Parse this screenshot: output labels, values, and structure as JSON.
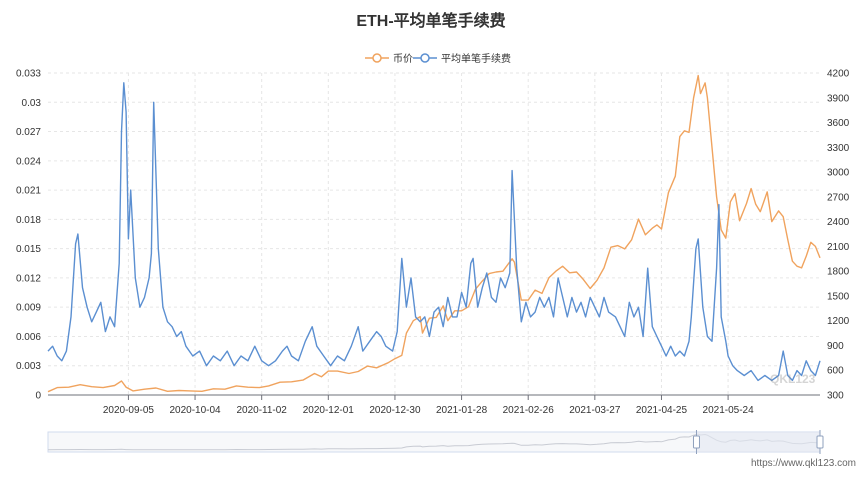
{
  "chart_data": {
    "type": "line",
    "title": "ETH-平均单笔手续费",
    "legend": [
      "币价",
      "平均单笔手续费"
    ],
    "legend_position": "top-center",
    "grid": true,
    "x_ticks": [
      "2020-09-05",
      "2020-10-04",
      "2020-11-02",
      "2020-12-01",
      "2020-12-30",
      "2021-01-28",
      "2021-02-26",
      "2021-03-27",
      "2021-04-25",
      "2021-05-24"
    ],
    "x_range": [
      "2020-08-01",
      "2021-07-03"
    ],
    "y_left": {
      "min": 0,
      "max": 0.033,
      "ticks": [
        "0",
        "0.003",
        "0.006",
        "0.009",
        "0.012",
        "0.015",
        "0.018",
        "0.021",
        "0.024",
        "0.027",
        "0.03",
        "0.033"
      ]
    },
    "y_right": {
      "min": 300,
      "max": 4200,
      "ticks": [
        "300",
        "600",
        "900",
        "1200",
        "1500",
        "1800",
        "2100",
        "2400",
        "2700",
        "3000",
        "3300",
        "3600",
        "3900",
        "4200"
      ]
    },
    "series": [
      {
        "name": "币价",
        "color": "#f0a35e",
        "axis": "right",
        "points": [
          [
            "2020-08-01",
            340
          ],
          [
            "2020-08-05",
            390
          ],
          [
            "2020-08-10",
            395
          ],
          [
            "2020-08-15",
            425
          ],
          [
            "2020-08-20",
            400
          ],
          [
            "2020-08-25",
            390
          ],
          [
            "2020-08-30",
            415
          ],
          [
            "2020-09-02",
            470
          ],
          [
            "2020-09-04",
            395
          ],
          [
            "2020-09-07",
            350
          ],
          [
            "2020-09-12",
            370
          ],
          [
            "2020-09-17",
            385
          ],
          [
            "2020-09-22",
            345
          ],
          [
            "2020-09-27",
            355
          ],
          [
            "2020-10-02",
            350
          ],
          [
            "2020-10-07",
            345
          ],
          [
            "2020-10-12",
            375
          ],
          [
            "2020-10-17",
            370
          ],
          [
            "2020-10-22",
            410
          ],
          [
            "2020-10-27",
            395
          ],
          [
            "2020-11-01",
            390
          ],
          [
            "2020-11-05",
            410
          ],
          [
            "2020-11-10",
            455
          ],
          [
            "2020-11-15",
            460
          ],
          [
            "2020-11-20",
            480
          ],
          [
            "2020-11-25",
            560
          ],
          [
            "2020-11-28",
            520
          ],
          [
            "2020-12-01",
            590
          ],
          [
            "2020-12-05",
            590
          ],
          [
            "2020-12-10",
            560
          ],
          [
            "2020-12-14",
            585
          ],
          [
            "2020-12-18",
            650
          ],
          [
            "2020-12-22",
            630
          ],
          [
            "2020-12-27",
            690
          ],
          [
            "2020-12-30",
            740
          ],
          [
            "2021-01-02",
            780
          ],
          [
            "2021-01-04",
            1050
          ],
          [
            "2021-01-07",
            1200
          ],
          [
            "2021-01-10",
            1250
          ],
          [
            "2021-01-11",
            1050
          ],
          [
            "2021-01-14",
            1230
          ],
          [
            "2021-01-17",
            1240
          ],
          [
            "2021-01-20",
            1380
          ],
          [
            "2021-01-22",
            1200
          ],
          [
            "2021-01-25",
            1320
          ],
          [
            "2021-01-28",
            1320
          ],
          [
            "2021-01-31",
            1370
          ],
          [
            "2021-02-03",
            1580
          ],
          [
            "2021-02-06",
            1680
          ],
          [
            "2021-02-09",
            1770
          ],
          [
            "2021-02-12",
            1790
          ],
          [
            "2021-02-15",
            1800
          ],
          [
            "2021-02-19",
            1950
          ],
          [
            "2021-02-20",
            1910
          ],
          [
            "2021-02-23",
            1450
          ],
          [
            "2021-02-26",
            1450
          ],
          [
            "2021-03-01",
            1570
          ],
          [
            "2021-03-04",
            1530
          ],
          [
            "2021-03-07",
            1720
          ],
          [
            "2021-03-10",
            1800
          ],
          [
            "2021-03-13",
            1860
          ],
          [
            "2021-03-16",
            1780
          ],
          [
            "2021-03-19",
            1790
          ],
          [
            "2021-03-22",
            1700
          ],
          [
            "2021-03-25",
            1590
          ],
          [
            "2021-03-28",
            1690
          ],
          [
            "2021-03-31",
            1840
          ],
          [
            "2021-04-03",
            2090
          ],
          [
            "2021-04-06",
            2110
          ],
          [
            "2021-04-09",
            2070
          ],
          [
            "2021-04-12",
            2180
          ],
          [
            "2021-04-15",
            2430
          ],
          [
            "2021-04-18",
            2240
          ],
          [
            "2021-04-21",
            2320
          ],
          [
            "2021-04-23",
            2360
          ],
          [
            "2021-04-25",
            2310
          ],
          [
            "2021-04-28",
            2750
          ],
          [
            "2021-05-01",
            2950
          ],
          [
            "2021-05-03",
            3430
          ],
          [
            "2021-05-05",
            3500
          ],
          [
            "2021-05-07",
            3480
          ],
          [
            "2021-05-09",
            3900
          ],
          [
            "2021-05-11",
            4170
          ],
          [
            "2021-05-12",
            3950
          ],
          [
            "2021-05-14",
            4080
          ],
          [
            "2021-05-15",
            3900
          ],
          [
            "2021-05-17",
            3300
          ],
          [
            "2021-05-19",
            2700
          ],
          [
            "2021-05-21",
            2300
          ],
          [
            "2021-05-23",
            2200
          ],
          [
            "2021-05-25",
            2640
          ],
          [
            "2021-05-27",
            2740
          ],
          [
            "2021-05-29",
            2410
          ],
          [
            "2021-06-01",
            2620
          ],
          [
            "2021-06-03",
            2800
          ],
          [
            "2021-06-05",
            2610
          ],
          [
            "2021-06-07",
            2520
          ],
          [
            "2021-06-10",
            2760
          ],
          [
            "2021-06-12",
            2400
          ],
          [
            "2021-06-15",
            2530
          ],
          [
            "2021-06-17",
            2460
          ],
          [
            "2021-06-19",
            2180
          ],
          [
            "2021-06-21",
            1920
          ],
          [
            "2021-06-23",
            1860
          ],
          [
            "2021-06-25",
            1840
          ],
          [
            "2021-06-27",
            1980
          ],
          [
            "2021-06-29",
            2150
          ],
          [
            "2021-07-01",
            2100
          ],
          [
            "2021-07-03",
            1960
          ]
        ]
      },
      {
        "name": "平均单笔手续费",
        "color": "#5b8fd1",
        "axis": "left",
        "points": [
          [
            "2020-08-01",
            0.0045
          ],
          [
            "2020-08-03",
            0.005
          ],
          [
            "2020-08-05",
            0.004
          ],
          [
            "2020-08-07",
            0.0035
          ],
          [
            "2020-08-09",
            0.0045
          ],
          [
            "2020-08-11",
            0.008
          ],
          [
            "2020-08-13",
            0.0155
          ],
          [
            "2020-08-14",
            0.0165
          ],
          [
            "2020-08-16",
            0.011
          ],
          [
            "2020-08-18",
            0.009
          ],
          [
            "2020-08-20",
            0.0075
          ],
          [
            "2020-08-22",
            0.0085
          ],
          [
            "2020-08-24",
            0.0095
          ],
          [
            "2020-08-26",
            0.0065
          ],
          [
            "2020-08-28",
            0.008
          ],
          [
            "2020-08-30",
            0.007
          ],
          [
            "2020-09-01",
            0.0135
          ],
          [
            "2020-09-02",
            0.027
          ],
          [
            "2020-09-03",
            0.032
          ],
          [
            "2020-09-04",
            0.029
          ],
          [
            "2020-09-05",
            0.016
          ],
          [
            "2020-09-06",
            0.021
          ],
          [
            "2020-09-08",
            0.012
          ],
          [
            "2020-09-10",
            0.009
          ],
          [
            "2020-09-12",
            0.01
          ],
          [
            "2020-09-14",
            0.012
          ],
          [
            "2020-09-15",
            0.0145
          ],
          [
            "2020-09-16",
            0.03
          ],
          [
            "2020-09-18",
            0.015
          ],
          [
            "2020-09-20",
            0.009
          ],
          [
            "2020-09-22",
            0.0075
          ],
          [
            "2020-09-24",
            0.007
          ],
          [
            "2020-09-26",
            0.006
          ],
          [
            "2020-09-28",
            0.0065
          ],
          [
            "2020-09-30",
            0.005
          ],
          [
            "2020-10-03",
            0.004
          ],
          [
            "2020-10-06",
            0.0045
          ],
          [
            "2020-10-09",
            0.003
          ],
          [
            "2020-10-12",
            0.004
          ],
          [
            "2020-10-15",
            0.0035
          ],
          [
            "2020-10-18",
            0.0045
          ],
          [
            "2020-10-21",
            0.003
          ],
          [
            "2020-10-24",
            0.004
          ],
          [
            "2020-10-27",
            0.0035
          ],
          [
            "2020-10-30",
            0.005
          ],
          [
            "2020-11-02",
            0.0035
          ],
          [
            "2020-11-05",
            0.003
          ],
          [
            "2020-11-08",
            0.0035
          ],
          [
            "2020-11-11",
            0.0045
          ],
          [
            "2020-11-13",
            0.005
          ],
          [
            "2020-11-15",
            0.004
          ],
          [
            "2020-11-18",
            0.0035
          ],
          [
            "2020-11-21",
            0.0055
          ],
          [
            "2020-11-24",
            0.007
          ],
          [
            "2020-11-26",
            0.005
          ],
          [
            "2020-11-29",
            0.004
          ],
          [
            "2020-12-02",
            0.003
          ],
          [
            "2020-12-05",
            0.004
          ],
          [
            "2020-12-08",
            0.0035
          ],
          [
            "2020-12-11",
            0.005
          ],
          [
            "2020-12-14",
            0.007
          ],
          [
            "2020-12-16",
            0.0045
          ],
          [
            "2020-12-19",
            0.0055
          ],
          [
            "2020-12-22",
            0.0065
          ],
          [
            "2020-12-24",
            0.006
          ],
          [
            "2020-12-26",
            0.005
          ],
          [
            "2020-12-29",
            0.0045
          ],
          [
            "2020-12-31",
            0.0065
          ],
          [
            "2021-01-02",
            0.014
          ],
          [
            "2021-01-04",
            0.009
          ],
          [
            "2021-01-06",
            0.012
          ],
          [
            "2021-01-08",
            0.008
          ],
          [
            "2021-01-10",
            0.0075
          ],
          [
            "2021-01-12",
            0.008
          ],
          [
            "2021-01-14",
            0.006
          ],
          [
            "2021-01-16",
            0.0085
          ],
          [
            "2021-01-18",
            0.009
          ],
          [
            "2021-01-20",
            0.007
          ],
          [
            "2021-01-22",
            0.01
          ],
          [
            "2021-01-24",
            0.008
          ],
          [
            "2021-01-26",
            0.008
          ],
          [
            "2021-01-28",
            0.0105
          ],
          [
            "2021-01-30",
            0.009
          ],
          [
            "2021-02-01",
            0.0135
          ],
          [
            "2021-02-02",
            0.014
          ],
          [
            "2021-02-04",
            0.009
          ],
          [
            "2021-02-06",
            0.011
          ],
          [
            "2021-02-08",
            0.0125
          ],
          [
            "2021-02-10",
            0.01
          ],
          [
            "2021-02-12",
            0.0095
          ],
          [
            "2021-02-14",
            0.012
          ],
          [
            "2021-02-16",
            0.011
          ],
          [
            "2021-02-18",
            0.0125
          ],
          [
            "2021-02-19",
            0.023
          ],
          [
            "2021-02-21",
            0.013
          ],
          [
            "2021-02-23",
            0.0075
          ],
          [
            "2021-02-25",
            0.0095
          ],
          [
            "2021-02-27",
            0.008
          ],
          [
            "2021-03-01",
            0.0085
          ],
          [
            "2021-03-03",
            0.01
          ],
          [
            "2021-03-05",
            0.009
          ],
          [
            "2021-03-07",
            0.01
          ],
          [
            "2021-03-09",
            0.008
          ],
          [
            "2021-03-11",
            0.012
          ],
          [
            "2021-03-13",
            0.01
          ],
          [
            "2021-03-15",
            0.008
          ],
          [
            "2021-03-17",
            0.01
          ],
          [
            "2021-03-19",
            0.0085
          ],
          [
            "2021-03-21",
            0.0095
          ],
          [
            "2021-03-23",
            0.008
          ],
          [
            "2021-03-25",
            0.01
          ],
          [
            "2021-03-27",
            0.009
          ],
          [
            "2021-03-29",
            0.008
          ],
          [
            "2021-03-31",
            0.01
          ],
          [
            "2021-04-02",
            0.0085
          ],
          [
            "2021-04-05",
            0.008
          ],
          [
            "2021-04-07",
            0.007
          ],
          [
            "2021-04-09",
            0.006
          ],
          [
            "2021-04-11",
            0.0095
          ],
          [
            "2021-04-13",
            0.008
          ],
          [
            "2021-04-15",
            0.009
          ],
          [
            "2021-04-17",
            0.006
          ],
          [
            "2021-04-19",
            0.013
          ],
          [
            "2021-04-21",
            0.007
          ],
          [
            "2021-04-23",
            0.006
          ],
          [
            "2021-04-25",
            0.005
          ],
          [
            "2021-04-27",
            0.004
          ],
          [
            "2021-04-29",
            0.005
          ],
          [
            "2021-05-01",
            0.004
          ],
          [
            "2021-05-03",
            0.0045
          ],
          [
            "2021-05-05",
            0.004
          ],
          [
            "2021-05-07",
            0.0055
          ],
          [
            "2021-05-08",
            0.008
          ],
          [
            "2021-05-10",
            0.015
          ],
          [
            "2021-05-11",
            0.016
          ],
          [
            "2021-05-13",
            0.009
          ],
          [
            "2021-05-15",
            0.006
          ],
          [
            "2021-05-17",
            0.0055
          ],
          [
            "2021-05-19",
            0.013
          ],
          [
            "2021-05-20",
            0.0195
          ],
          [
            "2021-05-21",
            0.008
          ],
          [
            "2021-05-23",
            0.0055
          ],
          [
            "2021-05-24",
            0.004
          ],
          [
            "2021-05-26",
            0.003
          ],
          [
            "2021-05-28",
            0.0025
          ],
          [
            "2021-05-31",
            0.002
          ],
          [
            "2021-06-03",
            0.0025
          ],
          [
            "2021-06-06",
            0.0015
          ],
          [
            "2021-06-09",
            0.002
          ],
          [
            "2021-06-12",
            0.0015
          ],
          [
            "2021-06-15",
            0.002
          ],
          [
            "2021-06-17",
            0.0045
          ],
          [
            "2021-06-19",
            0.002
          ],
          [
            "2021-06-21",
            0.0015
          ],
          [
            "2021-06-23",
            0.0025
          ],
          [
            "2021-06-25",
            0.002
          ],
          [
            "2021-06-27",
            0.0035
          ],
          [
            "2021-06-29",
            0.0025
          ],
          [
            "2021-07-01",
            0.002
          ],
          [
            "2021-07-03",
            0.0035
          ]
        ]
      }
    ],
    "data_zoom": {
      "start_fraction": 0.84,
      "end_fraction": 1.0
    }
  },
  "watermark": {
    "text": "https://www.qkl123.com",
    "logo_text": "QKL123"
  }
}
